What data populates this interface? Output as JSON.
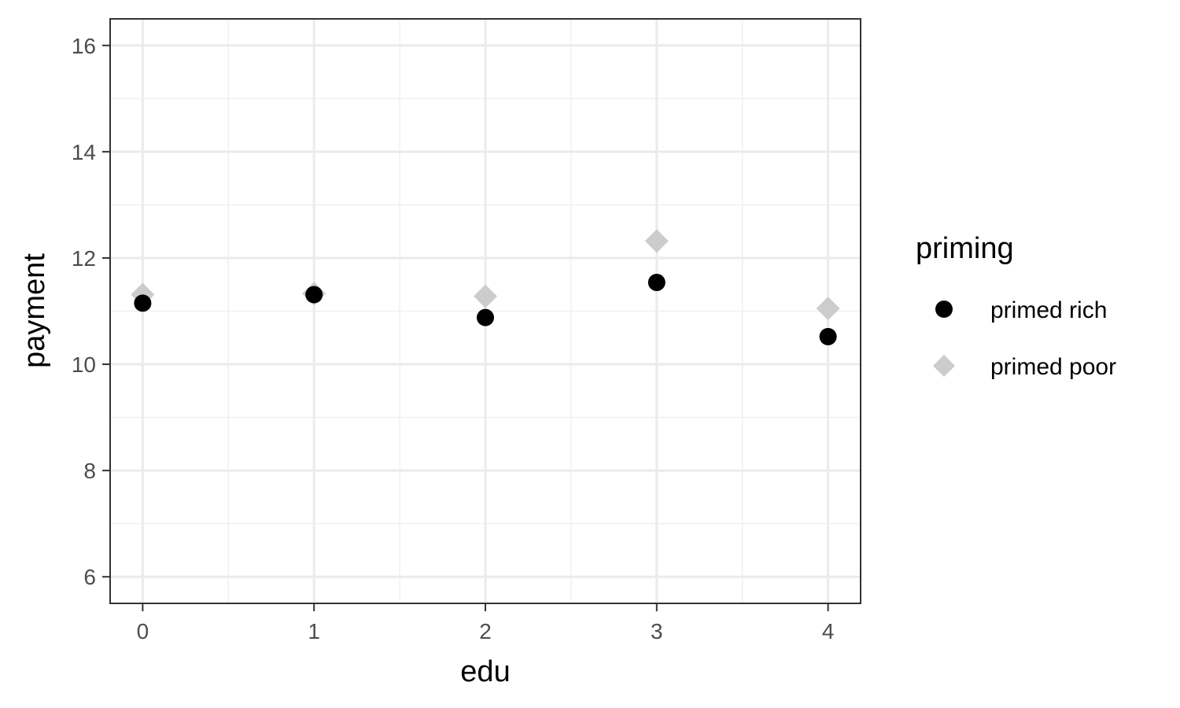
{
  "chart_data": {
    "type": "scatter",
    "xlabel": "edu",
    "ylabel": "payment",
    "xlim": [
      -0.19,
      4.19
    ],
    "ylim": [
      5.5,
      16.5
    ],
    "xticks": [
      0,
      1,
      2,
      3,
      4
    ],
    "xtick_labels": [
      "0",
      "1",
      "2",
      "3",
      "4"
    ],
    "yticks": [
      6,
      8,
      10,
      12,
      14,
      16
    ],
    "ytick_labels": [
      "6",
      "8",
      "10",
      "12",
      "14",
      "16"
    ],
    "grid": true,
    "legend": {
      "title": "priming",
      "position": "right"
    },
    "series": [
      {
        "name": "primed rich",
        "marker": "circle",
        "color": "#000000",
        "x": [
          0,
          1,
          2,
          3,
          4
        ],
        "y": [
          11.15,
          11.31,
          10.88,
          11.54,
          10.52
        ]
      },
      {
        "name": "primed poor",
        "marker": "diamond",
        "color": "#cccccc",
        "x": [
          0,
          1,
          2,
          3,
          4
        ],
        "y": [
          11.31,
          11.33,
          11.28,
          12.32,
          11.05
        ]
      }
    ]
  }
}
